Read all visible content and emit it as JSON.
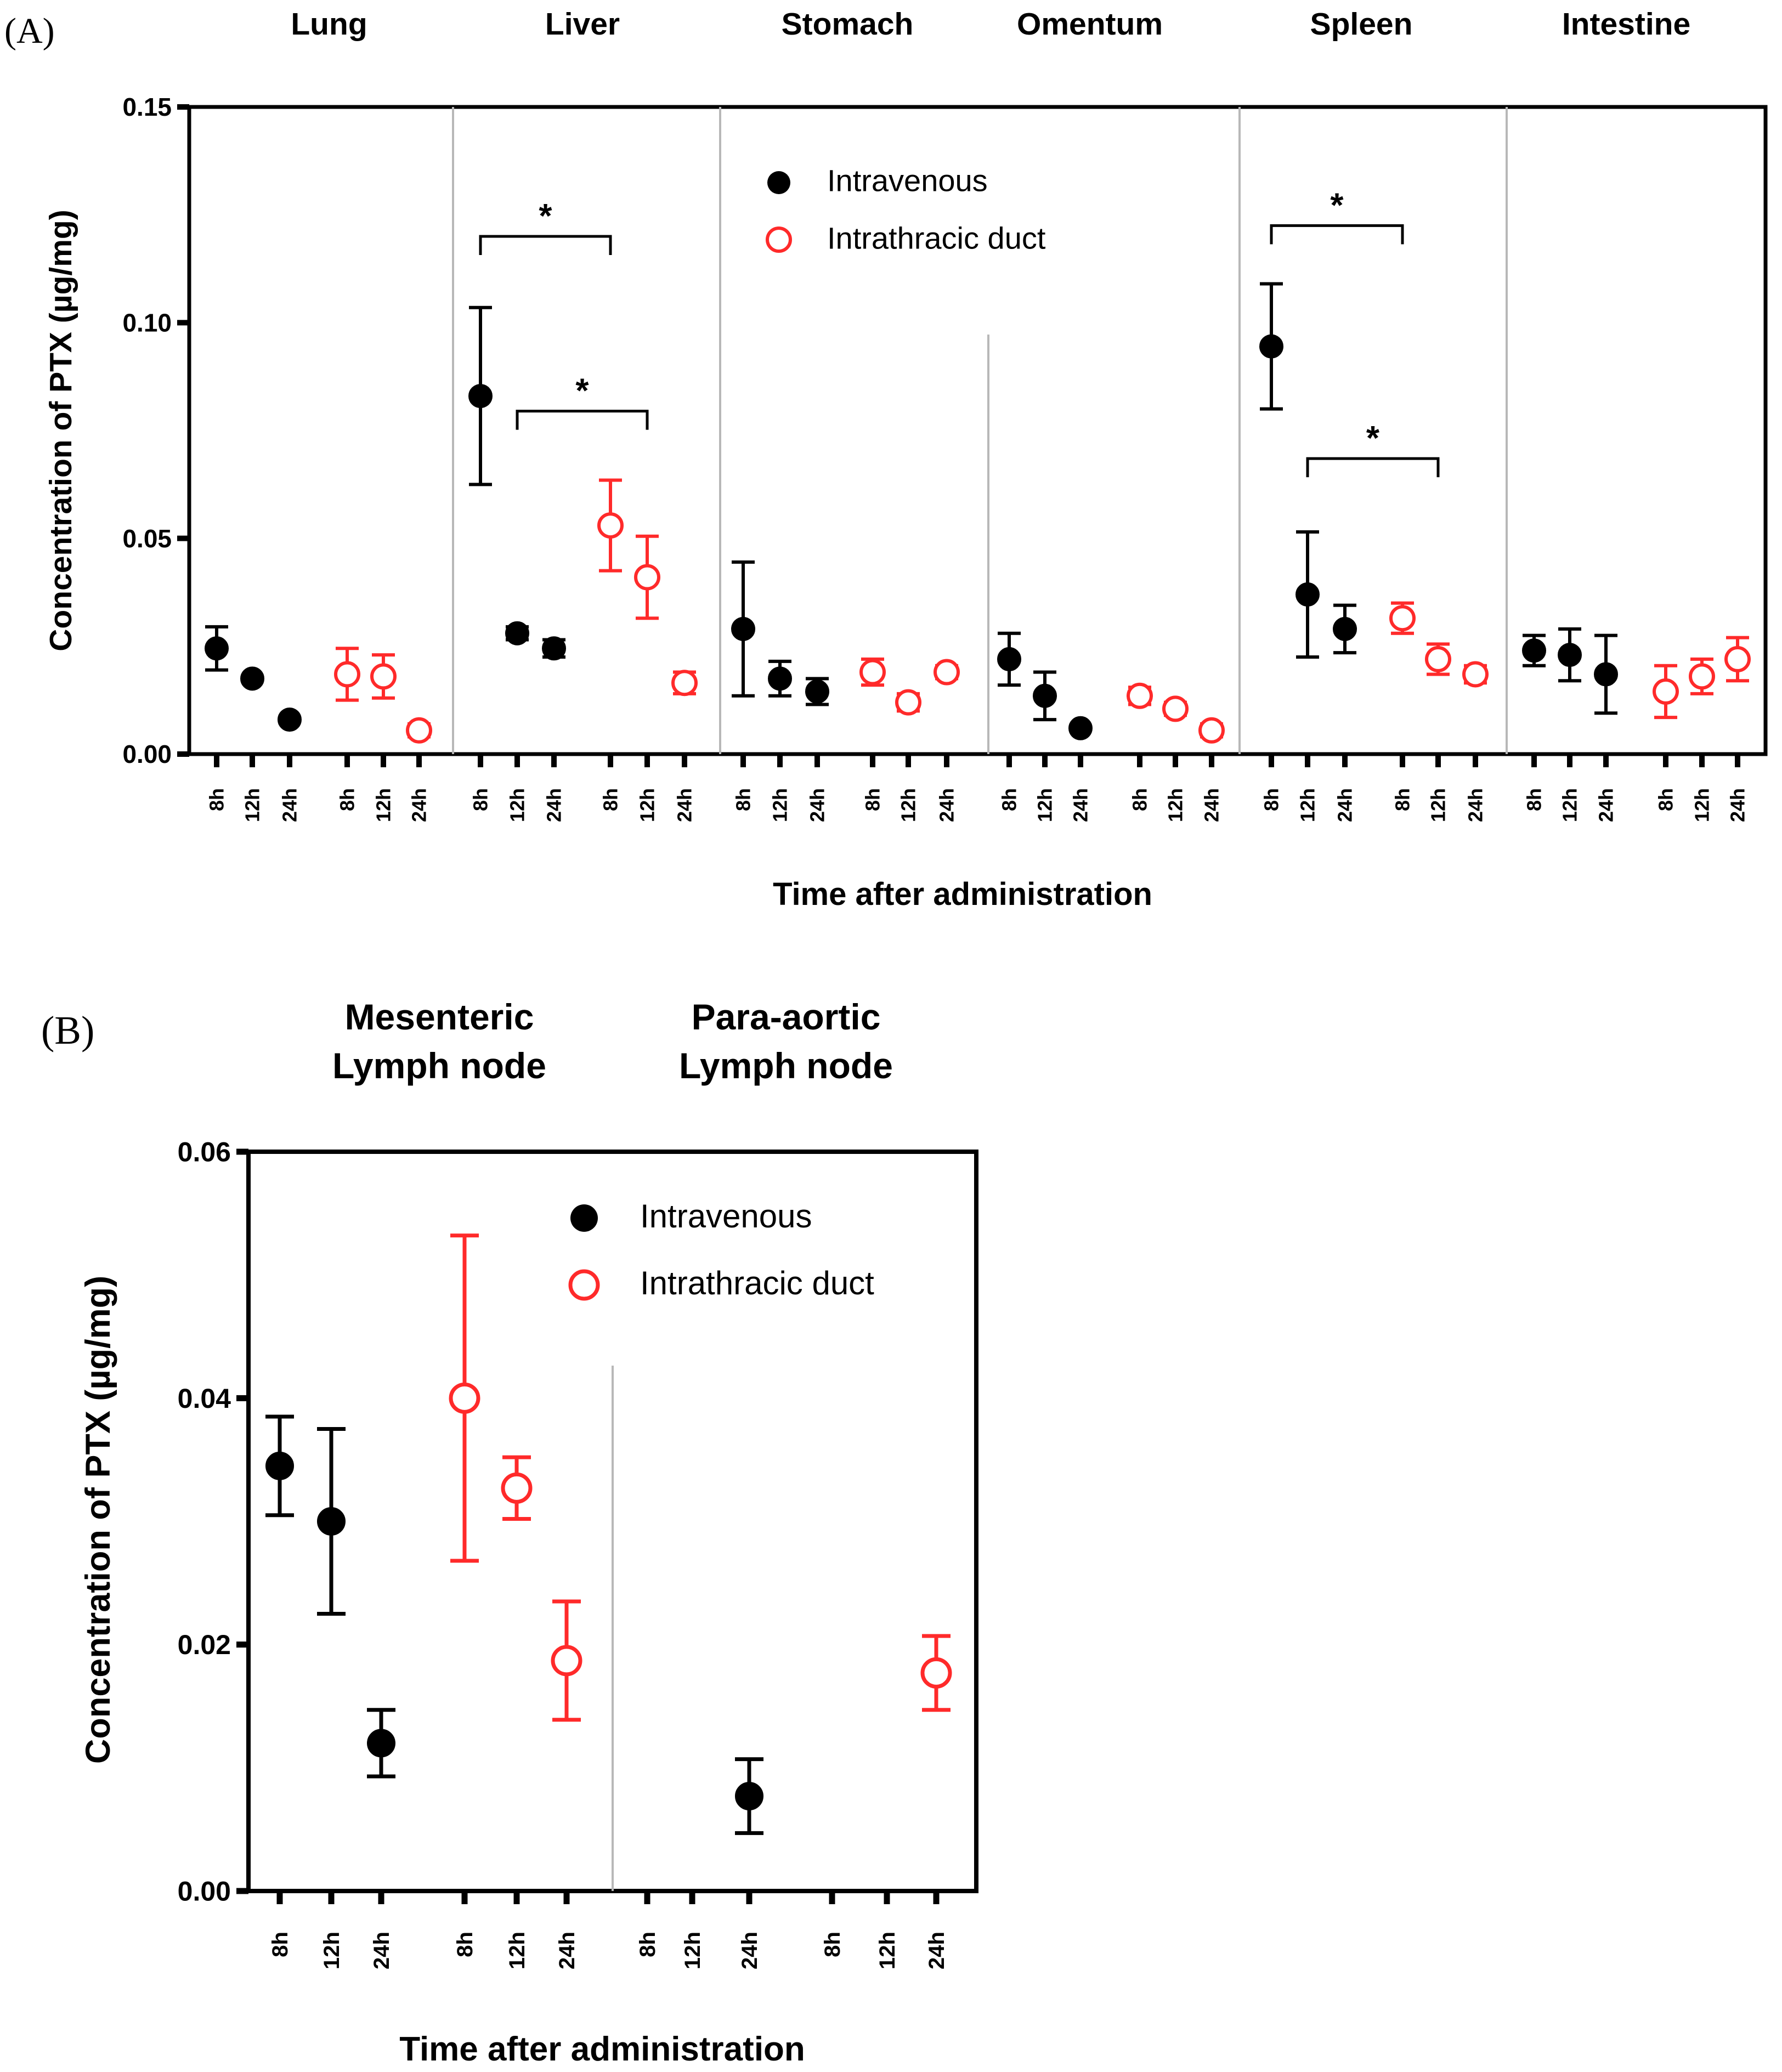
{
  "colors": {
    "iv": "#000000",
    "itd": "#ff2a2a",
    "axis": "#000000",
    "divider": "#b8b8b8"
  },
  "chart_data": [
    {
      "panel_label": "(A)",
      "type": "scatter",
      "ylabel": "Concentration of PTX (µg/mg)",
      "xlabel": "Time after administration",
      "ylim": [
        0,
        0.15
      ],
      "yticks": [
        "0.00",
        "0.05",
        "0.10",
        "0.15"
      ],
      "legend": {
        "position": "top-center",
        "items": [
          "Intravenous",
          "Intrathracic duct"
        ]
      },
      "groups": [
        {
          "name": "Lung",
          "iv": [
            [
              0.0245,
              0.005
            ],
            [
              0.0175,
              0.0
            ],
            [
              0.008,
              0.0
            ]
          ],
          "itd": [
            [
              0.0185,
              0.006
            ],
            [
              0.018,
              0.005
            ],
            [
              0.0055,
              0.0015
            ]
          ]
        },
        {
          "name": "Liver",
          "iv": [
            [
              0.083,
              0.0205
            ],
            [
              0.028,
              0.0015
            ],
            [
              0.0245,
              0.002
            ]
          ],
          "itd": [
            [
              0.053,
              0.0105
            ],
            [
              0.041,
              0.0095
            ],
            [
              0.0165,
              0.0025
            ]
          ]
        },
        {
          "name": "Stomach",
          "iv": [
            [
              0.029,
              0.0155
            ],
            [
              0.0175,
              0.004
            ],
            [
              0.0145,
              0.003
            ]
          ],
          "itd": [
            [
              0.019,
              0.003
            ],
            [
              0.012,
              0.002
            ],
            [
              0.019,
              0.0015
            ]
          ]
        },
        {
          "name": "Omentum",
          "iv": [
            [
              0.022,
              0.006
            ],
            [
              0.0135,
              0.0055
            ],
            [
              0.006,
              0.0
            ]
          ],
          "itd": [
            [
              0.0135,
              0.002
            ],
            [
              0.0105,
              0.0015
            ],
            [
              0.0055,
              0.0015
            ]
          ]
        },
        {
          "name": "Spleen",
          "iv": [
            [
              0.0945,
              0.0145
            ],
            [
              0.037,
              0.0145
            ],
            [
              0.029,
              0.0055
            ]
          ],
          "itd": [
            [
              0.0315,
              0.0035
            ],
            [
              0.022,
              0.0035
            ],
            [
              0.0185,
              0.002
            ]
          ]
        },
        {
          "name": "Intestine",
          "iv": [
            [
              0.024,
              0.0035
            ],
            [
              0.023,
              0.006
            ],
            [
              0.0185,
              0.009
            ]
          ],
          "itd": [
            [
              0.0145,
              0.006
            ],
            [
              0.018,
              0.004
            ],
            [
              0.022,
              0.005
            ]
          ]
        }
      ],
      "tick_labels": [
        "8h",
        "12h",
        "24h",
        "8h",
        "12h",
        "24h"
      ],
      "significance": [
        {
          "group": 1,
          "from": "iv-8h",
          "to": "itd-8h",
          "level": 0.12,
          "label": "*"
        },
        {
          "group": 1,
          "from": "iv-12h",
          "to": "itd-12h",
          "level": 0.0795,
          "label": "*"
        },
        {
          "group": 4,
          "from": "iv-8h",
          "to": "itd-8h",
          "level": 0.1225,
          "label": "*"
        },
        {
          "group": 4,
          "from": "iv-12h",
          "to": "itd-12h",
          "level": 0.0685,
          "label": "*"
        }
      ]
    },
    {
      "panel_label": "(B)",
      "type": "scatter",
      "ylabel": "Concentration of PTX (µg/mg)",
      "xlabel": "Time after administration",
      "ylim": [
        0,
        0.06
      ],
      "yticks": [
        "0.00",
        "0.02",
        "0.04",
        "0.06"
      ],
      "legend": {
        "position": "top-right",
        "items": [
          "Intravenous",
          "Intrathracic duct"
        ]
      },
      "groups": [
        {
          "name": "Mesenteric\nLymph node",
          "iv": [
            [
              0.0345,
              0.004
            ],
            [
              0.03,
              0.0075
            ],
            [
              0.012,
              0.0027
            ]
          ],
          "itd": [
            [
              0.04,
              0.0132
            ],
            [
              0.0327,
              0.0025
            ],
            [
              0.0187,
              0.0048
            ]
          ]
        },
        {
          "name": "Para-aortic\nLymph node",
          "iv": [
            null,
            null,
            [
              0.0077,
              0.003
            ]
          ],
          "itd": [
            null,
            null,
            [
              0.0177,
              0.003
            ]
          ]
        }
      ],
      "tick_labels": [
        "8h",
        "12h",
        "24h",
        "8h",
        "12h",
        "24h"
      ],
      "significance": []
    }
  ]
}
